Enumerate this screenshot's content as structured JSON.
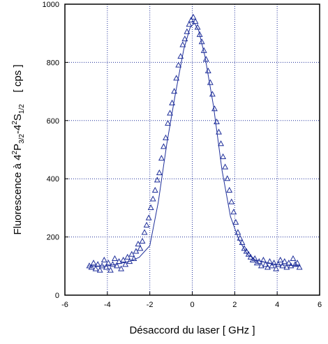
{
  "chart_data": {
    "type": "scatter",
    "title": "",
    "xlabel": "Désaccord du laser  [ GHz ]",
    "ylabel_parts": {
      "prefix": "Fluorescence à 4",
      "sup1": "2",
      "mid1": "P",
      "sub1": "3/2",
      "mid2": "-4",
      "sup2": "2",
      "mid3": "S",
      "sub2": "1/2",
      "unit": "    [ cps ]"
    },
    "xlim": [
      -6,
      6
    ],
    "ylim": [
      0,
      1000
    ],
    "xticks": [
      -6,
      -4,
      -2,
      0,
      2,
      4,
      6
    ],
    "yticks": [
      0,
      200,
      400,
      600,
      800,
      1000
    ],
    "xtick_labels": [
      "-6",
      "-4",
      "-2",
      "0",
      "2",
      "4",
      "6"
    ],
    "ytick_labels": [
      "0",
      "200",
      "400",
      "600",
      "800",
      "1000"
    ],
    "grid": true,
    "colors": {
      "data": "#1f2f9a",
      "grid": "#1f2f9a",
      "axis": "#000000"
    },
    "marker": "triangle-open",
    "series": [
      {
        "x": [
          -4.85,
          -4.75,
          -4.65,
          -4.55,
          -4.45,
          -4.35,
          -4.25,
          -4.15,
          -4.05,
          -3.95,
          -3.85,
          -3.75,
          -3.65,
          -3.55,
          -3.45,
          -3.35,
          -3.25,
          -3.15,
          -3.05,
          -2.95,
          -2.85,
          -2.75,
          -2.65,
          -2.55,
          -2.45,
          -2.35,
          -2.25,
          -2.15,
          -2.05,
          -1.95,
          -1.85,
          -1.75,
          -1.65,
          -1.55,
          -1.45,
          -1.35,
          -1.25,
          -1.15,
          -1.05,
          -0.95,
          -0.85,
          -0.75,
          -0.65,
          -0.55,
          -0.45,
          -0.35,
          -0.25,
          -0.15,
          -0.05,
          0.05,
          0.15,
          0.25,
          0.35,
          0.45,
          0.55,
          0.65,
          0.75,
          0.85,
          0.95,
          1.05,
          1.15,
          1.25,
          1.35,
          1.45,
          1.55,
          1.65,
          1.75,
          1.85,
          1.95,
          2.05,
          2.15,
          2.25,
          2.35,
          2.45,
          2.55,
          2.65,
          2.75,
          2.85,
          2.95,
          3.05,
          3.15,
          3.25,
          3.35,
          3.45,
          3.55,
          3.65,
          3.75,
          3.85,
          3.95,
          4.05,
          4.15,
          4.25,
          4.35,
          4.45,
          4.55,
          4.65,
          4.75,
          4.85,
          4.95,
          5.05
        ],
        "y": [
          100,
          95,
          110,
          90,
          105,
          85,
          100,
          120,
          95,
          110,
          85,
          105,
          125,
          100,
          115,
          90,
          120,
          105,
          130,
          115,
          140,
          125,
          150,
          175,
          160,
          185,
          215,
          240,
          265,
          300,
          330,
          360,
          395,
          420,
          470,
          510,
          540,
          590,
          625,
          660,
          700,
          745,
          790,
          820,
          860,
          880,
          905,
          930,
          945,
          955,
          940,
          920,
          895,
          870,
          840,
          810,
          770,
          730,
          690,
          640,
          595,
          560,
          520,
          475,
          440,
          400,
          360,
          320,
          285,
          250,
          215,
          195,
          180,
          160,
          150,
          140,
          130,
          120,
          125,
          110,
          115,
          100,
          120,
          105,
          95,
          115,
          100,
          110,
          90,
          105,
          120,
          100,
          115,
          95,
          110,
          100,
          125,
          105,
          110,
          95
        ]
      }
    ],
    "fit_line": {
      "x": [
        -4.9,
        -4.0,
        -3.0,
        -2.5,
        -2.0,
        -1.6,
        -1.2,
        -0.8,
        -0.4,
        -0.1,
        0.1,
        0.3,
        0.6,
        1.0,
        1.4,
        1.8,
        2.2,
        2.6,
        3.0,
        4.0,
        5.1
      ],
      "y": [
        100,
        100,
        115,
        130,
        170,
        320,
        520,
        690,
        845,
        920,
        935,
        910,
        820,
        650,
        430,
        270,
        190,
        140,
        120,
        105,
        100
      ]
    }
  }
}
